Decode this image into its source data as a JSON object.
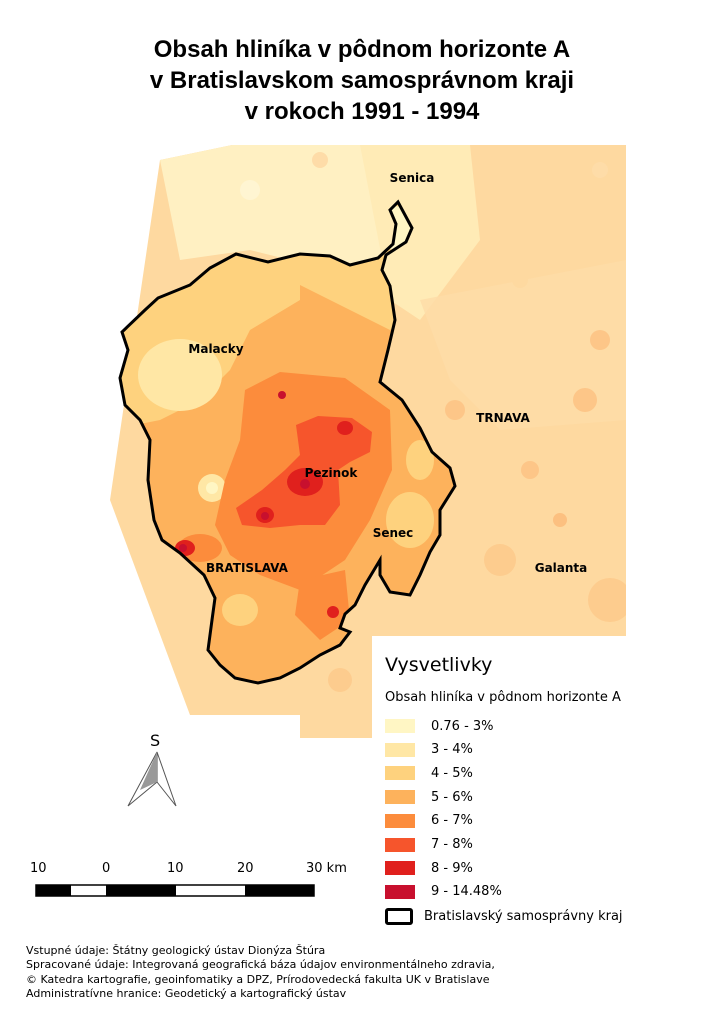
{
  "title": {
    "line1": "Obsah hliníka v pôdnom horizonte A",
    "line2": "v Bratislavskom samosprávnom kraji",
    "line3": "v rokoch 1991 - 1994"
  },
  "places": {
    "senica": "Senica",
    "malacky": "Malacky",
    "trnava": "TRNAVA",
    "pezinok": "Pezinok",
    "senec": "Senec",
    "bratislava": "BRATISLAVA",
    "galanta": "Galanta"
  },
  "legend": {
    "title": "Vysvetlivky",
    "subtitle": "Obsah hliníka v pôdnom horizonte A",
    "classes": [
      {
        "label": "0.76 - 3%",
        "color": "#fff6c4"
      },
      {
        "label": "3 - 4%",
        "color": "#ffe7a5"
      },
      {
        "label": "4 - 5%",
        "color": "#fed27e"
      },
      {
        "label": "5 - 6%",
        "color": "#fdb25c"
      },
      {
        "label": "6 - 7%",
        "color": "#fc8c3c"
      },
      {
        "label": "7 - 8%",
        "color": "#f6552c"
      },
      {
        "label": "8 - 9%",
        "color": "#e0201d"
      },
      {
        "label": "9 - 14.48%",
        "color": "#c8102e"
      }
    ],
    "boundary_label": "Bratislavský samosprávny kraj"
  },
  "north_arrow": {
    "letter": "S"
  },
  "scale_bar": {
    "labels": [
      "10",
      "0",
      "10",
      "20",
      "30 km"
    ]
  },
  "credits": [
    "Vstupné údaje: Štátny geologický ústav Dionýza Štúra",
    "Spracované údaje: Integrovaná geografická báza údajov environmentálneho zdravia,",
    "© Katedra kartografie, geoinfomatiky a DPZ, Prírodovedecká fakulta UK v Bratislave",
    "Administratívne hranice: Geodetický a kartografický ústav"
  ]
}
